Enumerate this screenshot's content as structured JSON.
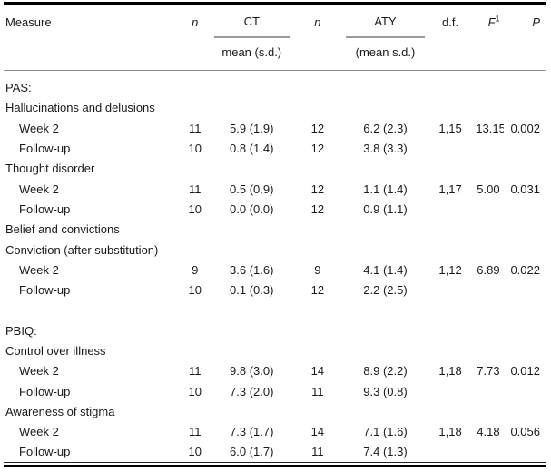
{
  "table": {
    "header": {
      "measure": "Measure",
      "n1": "n",
      "ct": "CT",
      "ct_sub": "mean (s.d.)",
      "n2": "n",
      "aty": "ATY",
      "aty_sub": "(mean s.d.)",
      "df": "d.f.",
      "f": "F",
      "f_sup": "1",
      "p": "P"
    },
    "rows": [
      {
        "type": "section",
        "measure": "PAS:"
      },
      {
        "type": "category",
        "measure": "Hallucinations and delusions"
      },
      {
        "type": "data",
        "measure": "Week 2",
        "n1": "11",
        "ct": "5.9 (1.9)",
        "n2": "12",
        "aty": "6.2 (2.3)",
        "df": "1,15",
        "f": "13.15",
        "p": "0.002"
      },
      {
        "type": "data",
        "measure": "Follow-up",
        "n1": "10",
        "ct": "0.8 (1.4)",
        "n2": "12",
        "aty": "3.8 (3.3)",
        "df": "",
        "f": "",
        "p": ""
      },
      {
        "type": "category",
        "measure": "Thought disorder"
      },
      {
        "type": "data",
        "measure": "Week 2",
        "n1": "11",
        "ct": "0.5 (0.9)",
        "n2": "12",
        "aty": "1.1 (1.4)",
        "df": "1,17",
        "f": "5.00",
        "p": "0.031"
      },
      {
        "type": "data",
        "measure": "Follow-up",
        "n1": "10",
        "ct": "0.0 (0.0)",
        "n2": "12",
        "aty": "0.9 (1.1)",
        "df": "",
        "f": "",
        "p": ""
      },
      {
        "type": "category",
        "measure": "Belief and convictions"
      },
      {
        "type": "category",
        "measure": "Conviction (after substitution)"
      },
      {
        "type": "data",
        "measure": "Week 2",
        "n1": "9",
        "ct": "3.6 (1.6)",
        "n2": "9",
        "aty": "4.1 (1.4)",
        "df": "1,12",
        "f": "6.89",
        "p": "0.022"
      },
      {
        "type": "data",
        "measure": "Follow-up",
        "n1": "10",
        "ct": "0.1 (0.3)",
        "n2": "12",
        "aty": "2.2 (2.5)",
        "df": "",
        "f": "",
        "p": ""
      },
      {
        "type": "spacer",
        "measure": ""
      },
      {
        "type": "section",
        "measure": "PBIQ:"
      },
      {
        "type": "category",
        "measure": "Control over illness"
      },
      {
        "type": "data",
        "measure": "Week 2",
        "n1": "11",
        "ct": "9.8 (3.0)",
        "n2": "14",
        "aty": "8.9 (2.2)",
        "df": "1,18",
        "f": "7.73",
        "p": "0.012"
      },
      {
        "type": "data",
        "measure": "Follow-up",
        "n1": "10",
        "ct": "7.3 (2.0)",
        "n2": "11",
        "aty": "9.3 (0.8)",
        "df": "",
        "f": "",
        "p": ""
      },
      {
        "type": "category",
        "measure": "Awareness of stigma"
      },
      {
        "type": "data",
        "measure": "Week 2",
        "n1": "11",
        "ct": "7.3 (1.7)",
        "n2": "14",
        "aty": "7.1 (1.6)",
        "df": "1,18",
        "f": "4.18",
        "p": "0.056"
      },
      {
        "type": "data",
        "measure": "Follow-up",
        "n1": "10",
        "ct": "6.0 (1.7)",
        "n2": "11",
        "aty": "7.4 (1.3)",
        "df": "",
        "f": "",
        "p": ""
      }
    ]
  },
  "colors": {
    "text": "#1a1a1a",
    "rule_heavy": "#000000",
    "rule_light": "#8c8c8c"
  }
}
